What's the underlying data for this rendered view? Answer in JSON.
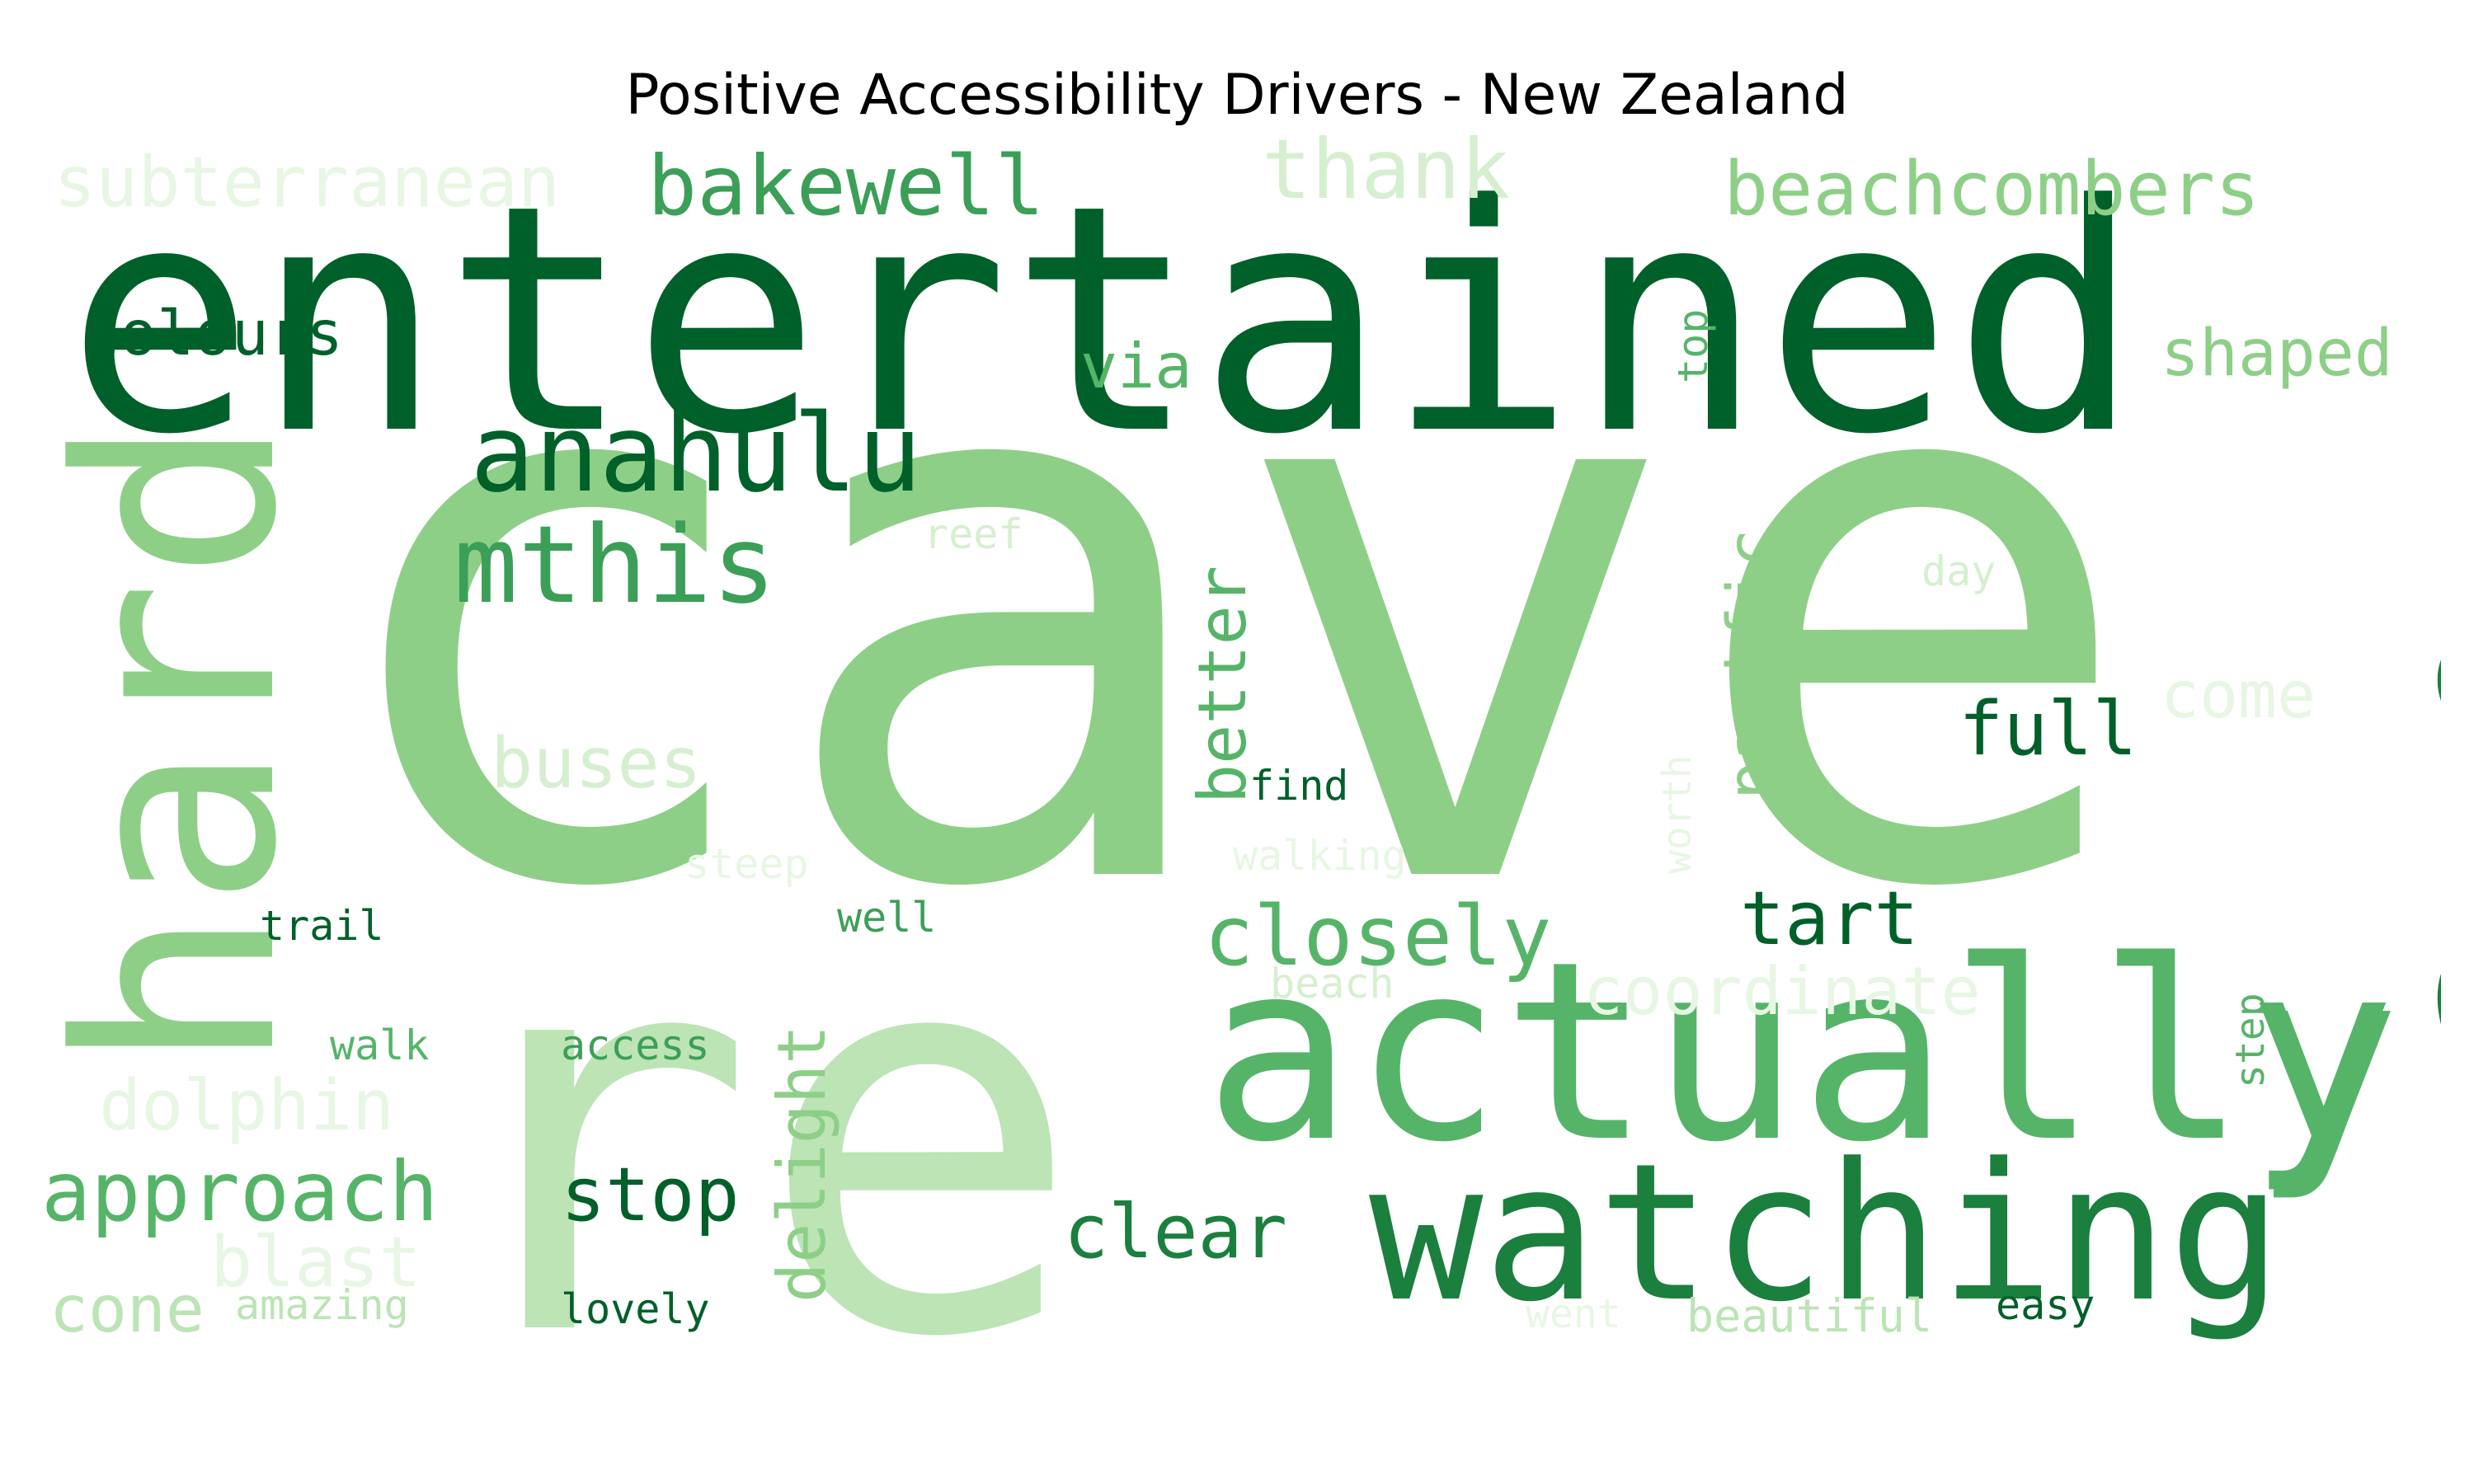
{
  "title": "Positive Accessibility Drivers - New Zealand",
  "colors": {
    "darkest": "#00602a",
    "dark": "#1b7f3e",
    "mid": "#3c9f57",
    "medium": "#56b469",
    "light": "#8ecf88",
    "lighter": "#bce4b5",
    "pale": "#d6efd0",
    "palest": "#e8f6e4"
  },
  "words": [
    {
      "text": "cave",
      "color": "light"
    },
    {
      "text": "entertained",
      "color": "darkest"
    },
    {
      "text": "re",
      "color": "lighter"
    },
    {
      "text": "actually",
      "color": "medium"
    },
    {
      "text": "watching",
      "color": "dark"
    },
    {
      "text": "ale",
      "color": "dark"
    },
    {
      "text": "hard",
      "color": "light"
    },
    {
      "text": "y",
      "color": "medium"
    },
    {
      "text": "anahulu",
      "color": "darkest"
    },
    {
      "text": "mthis",
      "color": "mid"
    },
    {
      "text": "bakewell",
      "color": "mid"
    },
    {
      "text": "beachcombers",
      "color": "light"
    },
    {
      "text": "thank",
      "color": "pale"
    },
    {
      "text": "subterranean",
      "color": "palest"
    },
    {
      "text": "colours",
      "color": "darkest"
    },
    {
      "text": "shaped",
      "color": "light"
    },
    {
      "text": "via",
      "color": "medium"
    },
    {
      "text": "top",
      "color": "medium"
    },
    {
      "text": "reef",
      "color": "pale"
    },
    {
      "text": "day",
      "color": "pale"
    },
    {
      "text": "better",
      "color": "medium"
    },
    {
      "text": "pacific",
      "color": "light"
    },
    {
      "text": "full",
      "color": "darkest"
    },
    {
      "text": "come",
      "color": "palest"
    },
    {
      "text": "buses",
      "color": "pale"
    },
    {
      "text": "find",
      "color": "darkest"
    },
    {
      "text": "worth",
      "color": "palest"
    },
    {
      "text": "walking",
      "color": "palest"
    },
    {
      "text": "steep",
      "color": "palest"
    },
    {
      "text": "trail",
      "color": "darkest"
    },
    {
      "text": "well",
      "color": "mid"
    },
    {
      "text": "closely",
      "color": "medium"
    },
    {
      "text": "tart",
      "color": "darkest"
    },
    {
      "text": "coordinate",
      "color": "palest"
    },
    {
      "text": "beach",
      "color": "pale"
    },
    {
      "text": "delight",
      "color": "light"
    },
    {
      "text": "step",
      "color": "medium"
    },
    {
      "text": "walk",
      "color": "medium"
    },
    {
      "text": "access",
      "color": "mid"
    },
    {
      "text": "dolphin",
      "color": "palest"
    },
    {
      "text": "approach",
      "color": "medium"
    },
    {
      "text": "stop",
      "color": "darkest"
    },
    {
      "text": "clear",
      "color": "dark"
    },
    {
      "text": "blast",
      "color": "palest"
    },
    {
      "text": "cone",
      "color": "lighter"
    },
    {
      "text": "amazing",
      "color": "lighter"
    },
    {
      "text": "lovely",
      "color": "darkest"
    },
    {
      "text": "went",
      "color": "palest"
    },
    {
      "text": "beautiful",
      "color": "lighter"
    },
    {
      "text": "easy",
      "color": "darkest"
    }
  ]
}
